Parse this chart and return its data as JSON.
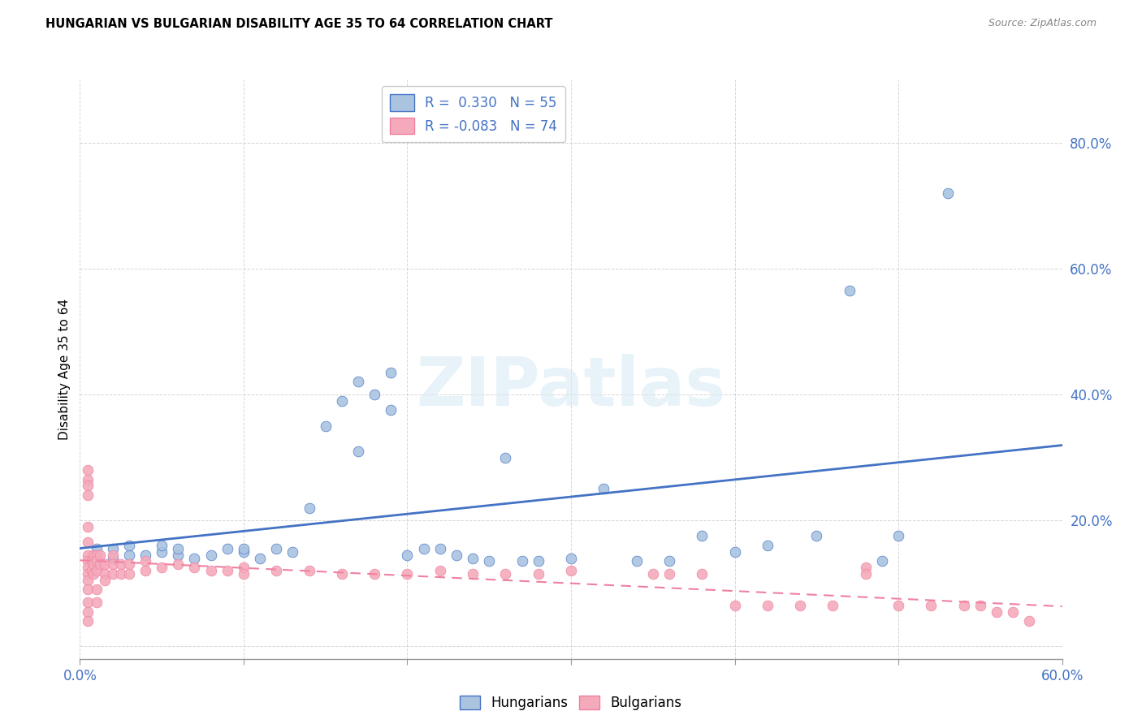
{
  "title": "HUNGARIAN VS BULGARIAN DISABILITY AGE 35 TO 64 CORRELATION CHART",
  "source": "Source: ZipAtlas.com",
  "ylabel": "Disability Age 35 to 64",
  "xlim": [
    0.0,
    0.6
  ],
  "ylim": [
    -0.02,
    0.9
  ],
  "legend_r_hungarian": "0.330",
  "legend_n_hungarian": "55",
  "legend_r_bulgarian": "-0.083",
  "legend_n_bulgarian": "74",
  "color_hungarian": "#aac4e0",
  "color_bulgarian": "#f4aabb",
  "color_hungarian_line": "#4472c4",
  "color_bulgarian_line": "#f080a0",
  "watermark": "ZIPatlas",
  "hungarian_points": [
    [
      0.01,
      0.14
    ],
    [
      0.01,
      0.155
    ],
    [
      0.02,
      0.14
    ],
    [
      0.02,
      0.155
    ],
    [
      0.03,
      0.145
    ],
    [
      0.03,
      0.16
    ],
    [
      0.04,
      0.145
    ],
    [
      0.05,
      0.15
    ],
    [
      0.05,
      0.16
    ],
    [
      0.06,
      0.145
    ],
    [
      0.06,
      0.155
    ],
    [
      0.07,
      0.14
    ],
    [
      0.08,
      0.145
    ],
    [
      0.09,
      0.155
    ],
    [
      0.1,
      0.15
    ],
    [
      0.1,
      0.155
    ],
    [
      0.11,
      0.14
    ],
    [
      0.12,
      0.155
    ],
    [
      0.13,
      0.15
    ],
    [
      0.14,
      0.22
    ],
    [
      0.15,
      0.35
    ],
    [
      0.16,
      0.39
    ],
    [
      0.17,
      0.31
    ],
    [
      0.17,
      0.42
    ],
    [
      0.18,
      0.4
    ],
    [
      0.19,
      0.435
    ],
    [
      0.19,
      0.375
    ],
    [
      0.2,
      0.145
    ],
    [
      0.21,
      0.155
    ],
    [
      0.22,
      0.155
    ],
    [
      0.23,
      0.145
    ],
    [
      0.24,
      0.14
    ],
    [
      0.25,
      0.135
    ],
    [
      0.26,
      0.3
    ],
    [
      0.27,
      0.135
    ],
    [
      0.28,
      0.135
    ],
    [
      0.3,
      0.14
    ],
    [
      0.32,
      0.25
    ],
    [
      0.34,
      0.135
    ],
    [
      0.36,
      0.135
    ],
    [
      0.38,
      0.175
    ],
    [
      0.4,
      0.15
    ],
    [
      0.42,
      0.16
    ],
    [
      0.45,
      0.175
    ],
    [
      0.47,
      0.565
    ],
    [
      0.49,
      0.135
    ],
    [
      0.5,
      0.175
    ],
    [
      0.53,
      0.72
    ]
  ],
  "bulgarian_points": [
    [
      0.005,
      0.28
    ],
    [
      0.005,
      0.265
    ],
    [
      0.005,
      0.255
    ],
    [
      0.005,
      0.24
    ],
    [
      0.005,
      0.19
    ],
    [
      0.005,
      0.165
    ],
    [
      0.005,
      0.145
    ],
    [
      0.005,
      0.135
    ],
    [
      0.005,
      0.125
    ],
    [
      0.005,
      0.115
    ],
    [
      0.005,
      0.105
    ],
    [
      0.005,
      0.09
    ],
    [
      0.005,
      0.07
    ],
    [
      0.005,
      0.055
    ],
    [
      0.005,
      0.04
    ],
    [
      0.007,
      0.135
    ],
    [
      0.007,
      0.12
    ],
    [
      0.008,
      0.145
    ],
    [
      0.008,
      0.13
    ],
    [
      0.008,
      0.115
    ],
    [
      0.01,
      0.145
    ],
    [
      0.01,
      0.135
    ],
    [
      0.01,
      0.12
    ],
    [
      0.01,
      0.09
    ],
    [
      0.01,
      0.07
    ],
    [
      0.012,
      0.145
    ],
    [
      0.012,
      0.13
    ],
    [
      0.015,
      0.13
    ],
    [
      0.015,
      0.115
    ],
    [
      0.015,
      0.105
    ],
    [
      0.02,
      0.145
    ],
    [
      0.02,
      0.13
    ],
    [
      0.02,
      0.115
    ],
    [
      0.025,
      0.13
    ],
    [
      0.025,
      0.115
    ],
    [
      0.03,
      0.13
    ],
    [
      0.03,
      0.115
    ],
    [
      0.04,
      0.135
    ],
    [
      0.04,
      0.12
    ],
    [
      0.05,
      0.125
    ],
    [
      0.06,
      0.13
    ],
    [
      0.07,
      0.125
    ],
    [
      0.08,
      0.12
    ],
    [
      0.09,
      0.12
    ],
    [
      0.1,
      0.125
    ],
    [
      0.1,
      0.115
    ],
    [
      0.12,
      0.12
    ],
    [
      0.14,
      0.12
    ],
    [
      0.16,
      0.115
    ],
    [
      0.18,
      0.115
    ],
    [
      0.2,
      0.115
    ],
    [
      0.22,
      0.12
    ],
    [
      0.24,
      0.115
    ],
    [
      0.26,
      0.115
    ],
    [
      0.28,
      0.115
    ],
    [
      0.3,
      0.12
    ],
    [
      0.35,
      0.115
    ],
    [
      0.36,
      0.115
    ],
    [
      0.38,
      0.115
    ],
    [
      0.4,
      0.065
    ],
    [
      0.42,
      0.065
    ],
    [
      0.44,
      0.065
    ],
    [
      0.46,
      0.065
    ],
    [
      0.48,
      0.125
    ],
    [
      0.48,
      0.115
    ],
    [
      0.5,
      0.065
    ],
    [
      0.52,
      0.065
    ],
    [
      0.54,
      0.065
    ],
    [
      0.55,
      0.065
    ],
    [
      0.56,
      0.055
    ],
    [
      0.57,
      0.055
    ],
    [
      0.58,
      0.04
    ]
  ]
}
